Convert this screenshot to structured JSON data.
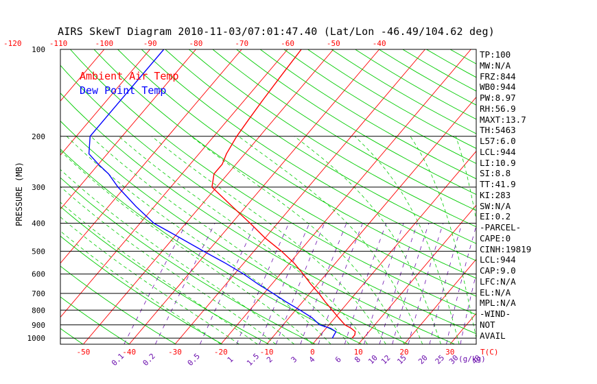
{
  "chart_data": {
    "type": "line",
    "title": "AIRS SkewT Diagram 2010-11-03/07:01:47.40 (Lat/Lon -46.49/104.62 deg)",
    "ylabel": "PRESSURE (MB)",
    "y_scale": "log",
    "ylim": [
      1050,
      100
    ],
    "xlim_bottom": [
      -55,
      40
    ],
    "pressure_ticks": [
      100,
      200,
      300,
      400,
      500,
      600,
      700,
      800,
      900,
      1000
    ],
    "temp_ticks_bottom": [
      -50,
      -40,
      -30,
      -20,
      -10,
      0,
      10,
      20,
      30
    ],
    "temp_ticks_top": [
      -120,
      -110,
      -100,
      -90,
      -80,
      -70,
      -60,
      -50,
      -40
    ],
    "temp_unit_label": "T(C)",
    "mixing_ratio_labels": [
      "0.1",
      "0.2",
      "0.5",
      "1",
      "1.5",
      "2",
      "3",
      "4",
      "6",
      "8",
      "10",
      "12",
      "15",
      "20",
      "25",
      "30",
      "40"
    ],
    "mixing_ratio_unit": "(g/kg)",
    "grid": true,
    "legend_position": "top-left",
    "colors": {
      "temperature": "#ff0000",
      "dewpoint": "#0000ff",
      "isotherm": "#ff0000",
      "dry_adiabat": "#00cc00",
      "moist_adiabat": "#00cc00",
      "mixing_ratio": "#6a0dad",
      "isobar": "#000000"
    },
    "series": [
      {
        "name": "Ambient Air Temp",
        "color": "#ff0000",
        "points": [
          {
            "p": 1000,
            "t": 7.5
          },
          {
            "p": 975,
            "t": 7.5
          },
          {
            "p": 950,
            "t": 7.0
          },
          {
            "p": 925,
            "t": 5.5
          },
          {
            "p": 900,
            "t": 3.5
          },
          {
            "p": 850,
            "t": 0.8
          },
          {
            "p": 800,
            "t": -2.0
          },
          {
            "p": 750,
            "t": -5.0
          },
          {
            "p": 700,
            "t": -8.0
          },
          {
            "p": 650,
            "t": -11.5
          },
          {
            "p": 600,
            "t": -15.0
          },
          {
            "p": 550,
            "t": -19.0
          },
          {
            "p": 500,
            "t": -24.0
          },
          {
            "p": 450,
            "t": -30.0
          },
          {
            "p": 400,
            "t": -36.0
          },
          {
            "p": 350,
            "t": -43.0
          },
          {
            "p": 300,
            "t": -51.0
          },
          {
            "p": 270,
            "t": -53.0
          },
          {
            "p": 250,
            "t": -53.0
          },
          {
            "p": 230,
            "t": -54.0
          },
          {
            "p": 200,
            "t": -55.0
          },
          {
            "p": 175,
            "t": -55.5
          },
          {
            "p": 150,
            "t": -56.0
          },
          {
            "p": 125,
            "t": -56.5
          },
          {
            "p": 100,
            "t": -57.0
          }
        ]
      },
      {
        "name": "Dew Point Temp",
        "color": "#0000ff",
        "points": [
          {
            "p": 1000,
            "t": 3.2
          },
          {
            "p": 975,
            "t": 3.0
          },
          {
            "p": 950,
            "t": 2.8
          },
          {
            "p": 925,
            "t": 1.0
          },
          {
            "p": 900,
            "t": -2.0
          },
          {
            "p": 850,
            "t": -5.0
          },
          {
            "p": 800,
            "t": -9.0
          },
          {
            "p": 750,
            "t": -13.5
          },
          {
            "p": 700,
            "t": -18.0
          },
          {
            "p": 650,
            "t": -23.0
          },
          {
            "p": 600,
            "t": -28.0
          },
          {
            "p": 550,
            "t": -34.0
          },
          {
            "p": 500,
            "t": -41.0
          },
          {
            "p": 450,
            "t": -48.5
          },
          {
            "p": 400,
            "t": -57.0
          },
          {
            "p": 350,
            "t": -64.0
          },
          {
            "p": 300,
            "t": -71.5
          },
          {
            "p": 270,
            "t": -76.0
          },
          {
            "p": 250,
            "t": -80.0
          },
          {
            "p": 230,
            "t": -84.0
          },
          {
            "p": 200,
            "t": -87.0
          },
          {
            "p": 175,
            "t": -87.0
          },
          {
            "p": 150,
            "t": -87.0
          },
          {
            "p": 125,
            "t": -87.0
          },
          {
            "p": 100,
            "t": -87.0
          }
        ]
      }
    ]
  },
  "indices": [
    "TP:100",
    "MW:N/A",
    "FRZ:844",
    "WB0:944",
    "PW:8.97",
    "RH:56.9",
    "MAXT:13.7",
    "TH:5463",
    "L57:6.0",
    "LCL:944",
    "LI:10.9",
    "SI:8.8",
    "TT:41.9",
    "KI:283",
    "SW:N/A",
    "EI:0.2",
    "-PARCEL-",
    "CAPE:0",
    "CINH:19819",
    "LCL:944",
    "CAP:9.0",
    "LFC:N/A",
    "EL:N/A",
    "MPL:N/A",
    "-WIND-",
    "NOT",
    "AVAIL"
  ]
}
